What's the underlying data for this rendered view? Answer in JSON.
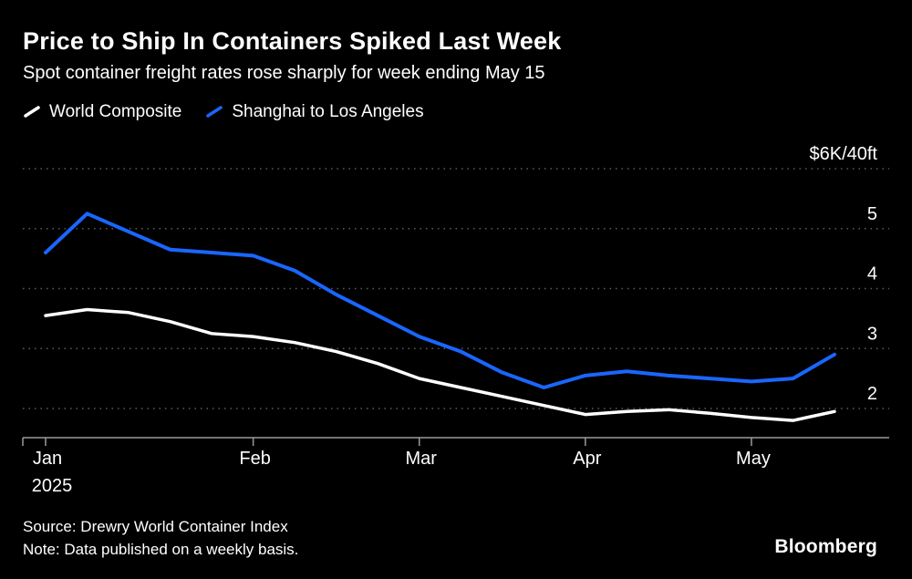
{
  "header": {
    "title": "Price to Ship In Containers Spiked Last Week",
    "subtitle": "Spot container freight rates rose sharply for week ending May 15"
  },
  "legend": [
    {
      "label": "World Composite",
      "color": "#ffffff"
    },
    {
      "label": "Shanghai to Los Angeles",
      "color": "#1a66ff"
    }
  ],
  "footer": {
    "source": "Source: Drewry World Container Index",
    "note": "Note: Data published on a weekly basis.",
    "brand": "Bloomberg"
  },
  "colors": {
    "background": "#000000",
    "text": "#ffffff",
    "gridline": "#5c5c5c",
    "axis": "#9a9a9a",
    "world_composite": "#ffffff",
    "shanghai_la": "#1a66ff"
  },
  "chart_data": {
    "type": "line",
    "title": "Price to Ship In Containers Spiked Last Week",
    "subtitle": "Spot container freight rates rose sharply for week ending May 15",
    "xlabel": "",
    "ylabel": "$6K/40ft",
    "x_unit": "week",
    "ylim": [
      2,
      6
    ],
    "grid": "dotted-horizontal",
    "legend_position": "top-left",
    "yticks": [
      {
        "value": 6,
        "label": "$6K/40ft"
      },
      {
        "value": 5,
        "label": "5"
      },
      {
        "value": 4,
        "label": "4"
      },
      {
        "value": 3,
        "label": "3"
      },
      {
        "value": 2,
        "label": "2"
      }
    ],
    "xticks": [
      {
        "i": 0,
        "label": "Jan",
        "sublabel": "2025"
      },
      {
        "i": 5,
        "label": "Feb"
      },
      {
        "i": 9,
        "label": "Mar"
      },
      {
        "i": 13,
        "label": "Apr"
      },
      {
        "i": 17,
        "label": "May"
      }
    ],
    "series": [
      {
        "name": "World Composite",
        "color": "#ffffff",
        "values": [
          3.55,
          3.65,
          3.6,
          3.45,
          3.25,
          3.2,
          3.1,
          2.95,
          2.75,
          2.5,
          2.35,
          2.2,
          2.05,
          1.9,
          1.95,
          1.98,
          1.92,
          1.85,
          1.8,
          1.95
        ]
      },
      {
        "name": "Shanghai to Los Angeles",
        "color": "#1a66ff",
        "values": [
          4.6,
          5.25,
          4.95,
          4.65,
          4.6,
          4.55,
          4.3,
          3.9,
          3.55,
          3.2,
          2.95,
          2.6,
          2.35,
          2.55,
          2.62,
          2.55,
          2.5,
          2.45,
          2.5,
          2.9
        ]
      }
    ]
  }
}
